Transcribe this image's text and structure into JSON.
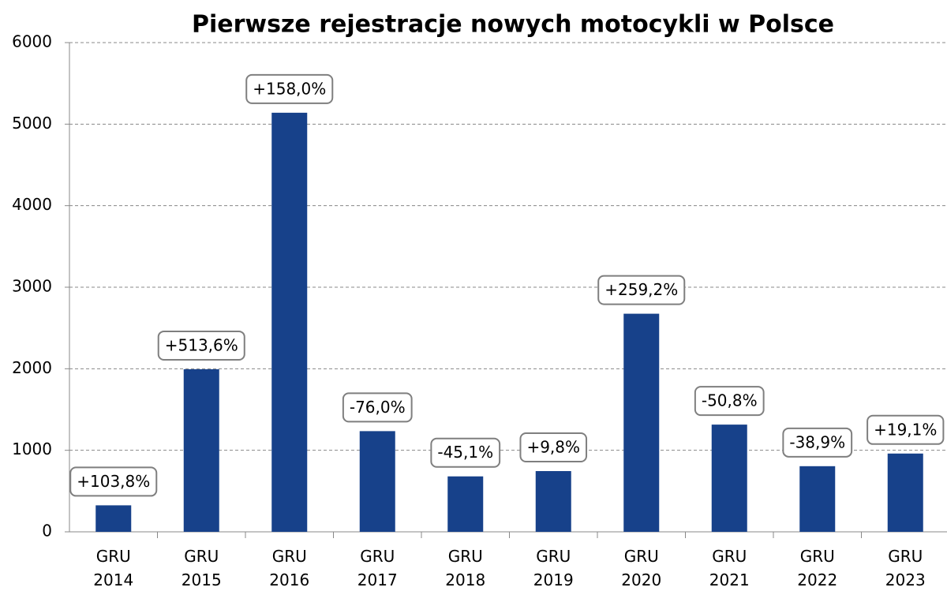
{
  "chart_data": {
    "type": "bar",
    "title": "Pierwsze rejestracje nowych motocykli w Polsce",
    "categories": [
      "GRU 2014",
      "GRU 2015",
      "GRU 2016",
      "GRU 2017",
      "GRU 2018",
      "GRU 2019",
      "GRU 2020",
      "GRU 2021",
      "GRU 2022",
      "GRU 2023"
    ],
    "values": [
      325,
      1994,
      5140,
      1235,
      680,
      745,
      2675,
      1315,
      805,
      960
    ],
    "annotations": [
      "+103,8%",
      "+513,6%",
      "+158,0%",
      "-76,0%",
      "-45,1%",
      "+9,8%",
      "+259,2%",
      "-50,8%",
      "-38,9%",
      "+19,1%"
    ],
    "color": "#17418a",
    "ylim": [
      0,
      6000
    ],
    "yticks": [
      0,
      1000,
      2000,
      3000,
      4000,
      5000,
      6000
    ],
    "grid": true
  }
}
